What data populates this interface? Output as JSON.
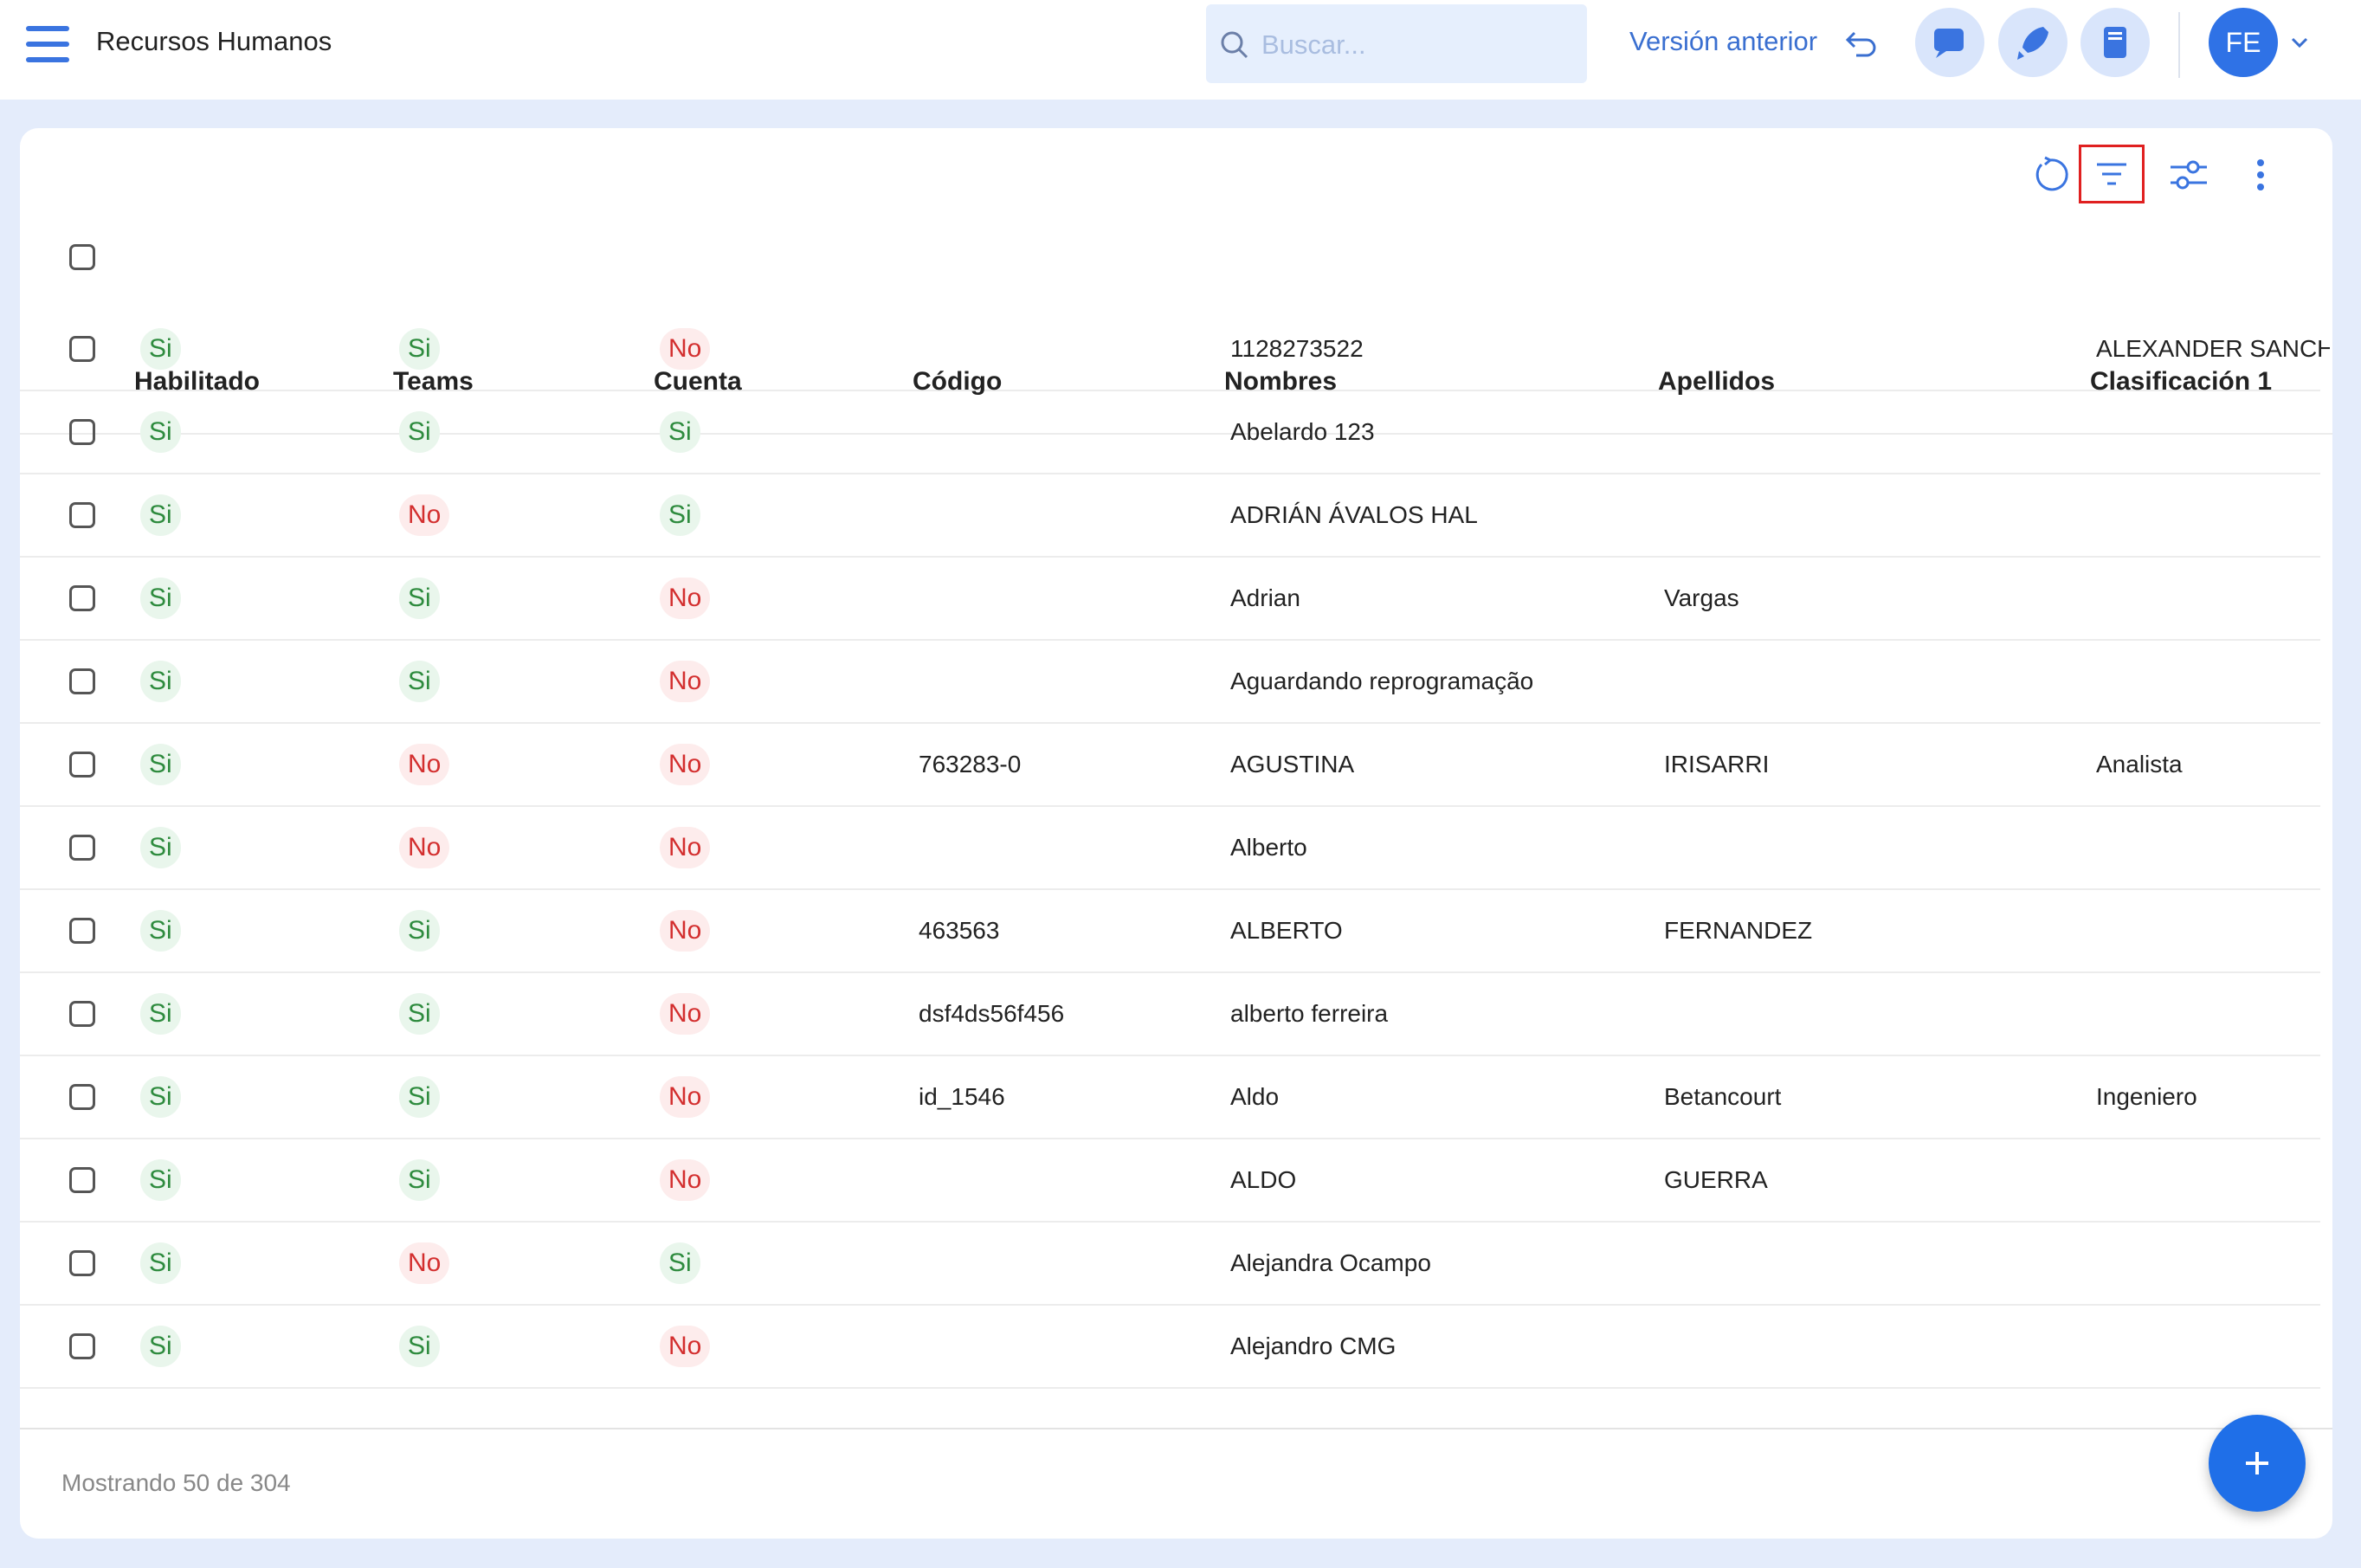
{
  "header": {
    "title": "Recursos Humanos",
    "search_placeholder": "Buscar...",
    "previous_version": "Versión anterior",
    "avatar": "FE"
  },
  "table": {
    "columns": [
      "Habilitado",
      "Teams",
      "Cuenta",
      "Código",
      "Nombres",
      "Apellidos",
      "Clasificación 1"
    ],
    "rows": [
      [
        "Si",
        "Si",
        "No",
        null,
        "1128273522",
        null,
        "ALEXANDER SANCH…"
      ],
      [
        "Si",
        "Si",
        "Si",
        null,
        "Abelardo 123",
        null,
        null
      ],
      [
        "Si",
        "No",
        "Si",
        null,
        "ADRIÁN ÁVALOS HAL",
        null,
        null
      ],
      [
        "Si",
        "Si",
        "No",
        null,
        "Adrian",
        "Vargas",
        null
      ],
      [
        "Si",
        "Si",
        "No",
        null,
        "Aguardando reprogramação",
        null,
        null
      ],
      [
        "Si",
        "No",
        "No",
        "763283-0",
        "AGUSTINA",
        "IRISARRI",
        "Analista"
      ],
      [
        "Si",
        "No",
        "No",
        null,
        "Alberto",
        null,
        null
      ],
      [
        "Si",
        "Si",
        "No",
        "463563",
        "ALBERTO",
        "FERNANDEZ",
        null
      ],
      [
        "Si",
        "Si",
        "No",
        "dsf4ds56f456",
        "alberto ferreira",
        null,
        null
      ],
      [
        "Si",
        "Si",
        "No",
        "id_1546",
        "Aldo",
        "Betancourt",
        "Ingeniero"
      ],
      [
        "Si",
        "Si",
        "No",
        null,
        "ALDO",
        "GUERRA",
        null
      ],
      [
        "Si",
        "No",
        "Si",
        null,
        "Alejandra Ocampo",
        null,
        null
      ],
      [
        "Si",
        "Si",
        "No",
        null,
        "Alejandro CMG",
        null,
        null
      ]
    ]
  },
  "footer": {
    "status": "Mostrando 50 de 304"
  }
}
